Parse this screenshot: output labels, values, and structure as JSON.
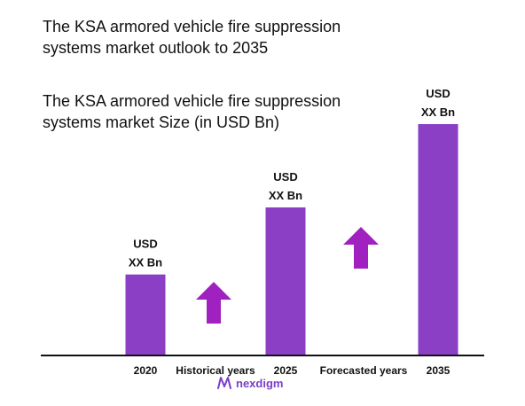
{
  "title": {
    "line1": "The KSA armored vehicle fire suppression",
    "line2": "systems market outlook to 2035"
  },
  "subtitle": {
    "line1": "The KSA armored vehicle fire suppression",
    "line2": "systems market Size (in USD Bn)"
  },
  "colors": {
    "bar": "#8a3fc4",
    "arrow": "#a020c0",
    "axis": "#111111"
  },
  "chart_data": {
    "type": "bar",
    "categories": [
      "2020",
      "2025",
      "2035"
    ],
    "values": [
      35,
      64,
      100
    ],
    "value_note": "relative heights only; values printed as placeholders",
    "bar_labels": [
      {
        "line1": "USD",
        "line2": "XX Bn"
      },
      {
        "line1": "USD",
        "line2": "XX Bn"
      },
      {
        "line1": "USD",
        "line2": "XX Bn"
      }
    ],
    "period_labels": [
      "Historical years",
      "Forecasted years"
    ],
    "ylim": [
      0,
      100
    ],
    "grid": false,
    "legend": "none"
  },
  "logo": {
    "text": "nexdigm",
    "icon": "nexdigm-logo-icon"
  }
}
